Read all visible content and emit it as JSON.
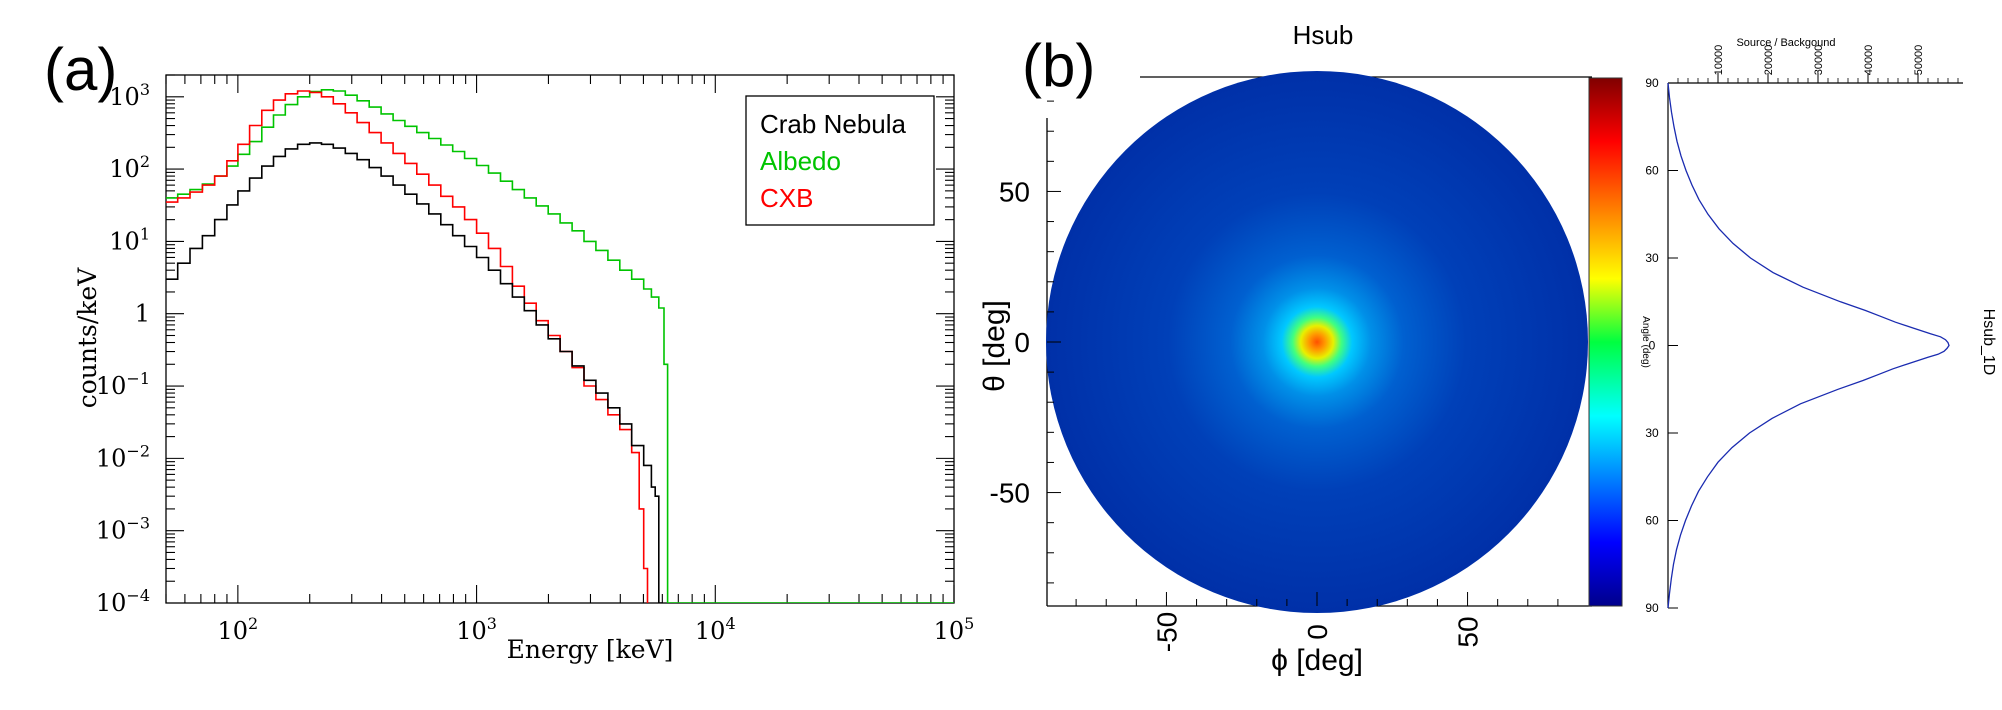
{
  "panels": {
    "a_label": "(a)",
    "b_label": "(b)"
  },
  "chart_data": [
    {
      "type": "line",
      "panel": "(a)",
      "step": true,
      "xlabel": "Energy [keV]",
      "ylabel": "counts/keV",
      "xscale": "log",
      "yscale": "log",
      "xlim": [
        50,
        100000
      ],
      "ylim": [
        0.0001,
        2000
      ],
      "x_ticks": [
        {
          "value": 100,
          "base": "10",
          "exp": "2"
        },
        {
          "value": 1000,
          "base": "10",
          "exp": "3"
        },
        {
          "value": 10000,
          "base": "10",
          "exp": "4"
        },
        {
          "value": 100000,
          "base": "10",
          "exp": "5"
        }
      ],
      "y_ticks": [
        {
          "value": 0.0001,
          "base": "10",
          "exp": "−4"
        },
        {
          "value": 0.001,
          "base": "10",
          "exp": "−3"
        },
        {
          "value": 0.01,
          "base": "10",
          "exp": "−2"
        },
        {
          "value": 0.1,
          "base": "10",
          "exp": "−1"
        },
        {
          "value": 1,
          "base": "1",
          "exp": ""
        },
        {
          "value": 10,
          "base": "10",
          "exp": "1"
        },
        {
          "value": 100,
          "base": "10",
          "exp": "2"
        },
        {
          "value": 1000,
          "base": "10",
          "exp": "3"
        }
      ],
      "legend_position": "top-right",
      "grid": false,
      "series": [
        {
          "name": "Crab Nebula",
          "color": "#000000",
          "x": [
            50,
            56,
            63,
            71,
            80,
            90,
            100,
            112,
            126,
            141,
            158,
            178,
            200,
            224,
            251,
            282,
            316,
            355,
            398,
            447,
            501,
            562,
            631,
            708,
            794,
            891,
            1000,
            1122,
            1259,
            1413,
            1585,
            1778,
            1995,
            2239,
            2512,
            2818,
            3162,
            3548,
            3981,
            4467,
            5012,
            5400,
            5600,
            5800,
            6000
          ],
          "y": [
            3,
            5,
            8,
            12,
            20,
            32,
            50,
            75,
            110,
            150,
            190,
            220,
            230,
            220,
            195,
            165,
            135,
            105,
            80,
            60,
            45,
            33,
            24,
            17,
            12,
            8.5,
            6,
            4,
            2.6,
            1.7,
            1.1,
            0.7,
            0.45,
            0.3,
            0.19,
            0.12,
            0.08,
            0.05,
            0.03,
            0.015,
            0.008,
            0.004,
            0.003,
            0.0001,
            0.0001
          ]
        },
        {
          "name": "Albedo",
          "color": "#00c400",
          "x": [
            50,
            56,
            63,
            71,
            80,
            90,
            100,
            112,
            126,
            141,
            158,
            178,
            200,
            224,
            251,
            282,
            316,
            355,
            398,
            447,
            501,
            562,
            631,
            708,
            794,
            891,
            1000,
            1122,
            1259,
            1413,
            1585,
            1778,
            1995,
            2239,
            2512,
            2818,
            3162,
            3548,
            3981,
            4467,
            5012,
            5400,
            5800,
            6100,
            6310,
            6400,
            100000
          ],
          "y": [
            40,
            45,
            52,
            62,
            80,
            110,
            160,
            240,
            380,
            560,
            780,
            1000,
            1180,
            1250,
            1200,
            1050,
            880,
            720,
            580,
            470,
            390,
            320,
            265,
            215,
            175,
            140,
            112,
            88,
            68,
            52,
            40,
            31,
            24,
            18,
            14,
            10,
            7.5,
            5.5,
            4,
            3,
            2.2,
            1.7,
            1.2,
            0.2,
            0.0001,
            0.0001,
            0.0001
          ]
        },
        {
          "name": "CXB",
          "color": "#ff0000",
          "x": [
            50,
            56,
            63,
            71,
            80,
            90,
            100,
            112,
            126,
            141,
            158,
            178,
            200,
            224,
            251,
            282,
            316,
            355,
            398,
            447,
            501,
            562,
            631,
            708,
            794,
            891,
            1000,
            1122,
            1259,
            1413,
            1585,
            1778,
            1995,
            2239,
            2512,
            2818,
            3162,
            3548,
            3981,
            4467,
            4800,
            5012,
            5200
          ],
          "y": [
            35,
            40,
            48,
            60,
            80,
            130,
            220,
            400,
            650,
            900,
            1100,
            1200,
            1150,
            1000,
            800,
            600,
            440,
            320,
            230,
            165,
            120,
            85,
            60,
            42,
            30,
            20,
            13,
            8,
            4.5,
            2.4,
            1.4,
            0.8,
            0.5,
            0.3,
            0.18,
            0.1,
            0.065,
            0.04,
            0.025,
            0.012,
            0.002,
            0.0003,
            0.0001
          ]
        }
      ]
    },
    {
      "type": "heatmap",
      "panel": "(b)",
      "title": "Hsub",
      "xlabel": "ϕ [deg]",
      "ylabel": "θ [deg]",
      "xlim": [
        -90,
        90
      ],
      "ylim": [
        -90,
        90
      ],
      "x_ticks": [
        {
          "value": -50,
          "label": "-50"
        },
        {
          "value": 0,
          "label": "0"
        },
        {
          "value": 50,
          "label": "50"
        }
      ],
      "y_ticks": [
        {
          "value": 50,
          "label": "50"
        },
        {
          "value": 0,
          "label": "0"
        },
        {
          "value": -50,
          "label": "-50"
        }
      ],
      "colorbar": {
        "label": "Angle (deg)",
        "colormap": "jet",
        "position": "right"
      },
      "disk": {
        "radius_deg": 90,
        "background_level": 0.1
      },
      "peak": {
        "phi_deg": 0,
        "theta_deg": 0,
        "core_sigma_deg": 7,
        "halo_sigma_deg": 20,
        "peak_level": 0.85
      },
      "colors": {
        "jet_low": "#00008b",
        "jet_high": "#800000"
      }
    },
    {
      "type": "line",
      "panel": "Hsub_1D",
      "title": "Hsub_1D",
      "xlabel": "Source / Backgound",
      "orientation": "rotated",
      "top_axis_ticks": [
        {
          "value": 10000,
          "label": "10000"
        },
        {
          "value": 20000,
          "label": "20000"
        },
        {
          "value": 30000,
          "label": "30000"
        },
        {
          "value": 40000,
          "label": "40000"
        },
        {
          "value": 50000,
          "label": "50000"
        }
      ],
      "axis_range": [
        0,
        59000
      ],
      "side_ticks": [
        {
          "value": 90,
          "label": "90"
        },
        {
          "value": 60,
          "label": "60"
        },
        {
          "value": 30,
          "label": "30"
        },
        {
          "value": 0,
          "label": "0"
        },
        {
          "value": -30,
          "label": "30"
        },
        {
          "value": -60,
          "label": "60"
        },
        {
          "value": -90,
          "label": "90"
        }
      ],
      "series": [
        {
          "name": "",
          "color": "#1a2bb0",
          "angle": [
            90,
            85,
            80,
            75,
            70,
            65,
            60,
            55,
            50,
            45,
            40,
            35,
            30,
            25,
            20,
            15,
            12,
            10,
            8,
            6,
            4,
            3,
            2,
            1,
            0,
            -1,
            -2,
            -3,
            -4,
            -6,
            -8,
            -10,
            -12,
            -15,
            -20,
            -25,
            -30,
            -35,
            -40,
            -45,
            -50,
            -55,
            -60,
            -65,
            -70,
            -75,
            -80,
            -85,
            -90
          ],
          "value": [
            0,
            300,
            700,
            1200,
            1800,
            2600,
            3600,
            4800,
            6200,
            8000,
            10200,
            13000,
            16500,
            21000,
            27000,
            34500,
            39500,
            42500,
            45500,
            49000,
            52500,
            54500,
            55500,
            56000,
            56200,
            55800,
            55200,
            54000,
            52000,
            48500,
            45000,
            42000,
            39000,
            34000,
            26500,
            20800,
            16300,
            12800,
            10000,
            7900,
            6100,
            4700,
            3500,
            2500,
            1700,
            1100,
            650,
            300,
            0
          ]
        }
      ]
    }
  ]
}
